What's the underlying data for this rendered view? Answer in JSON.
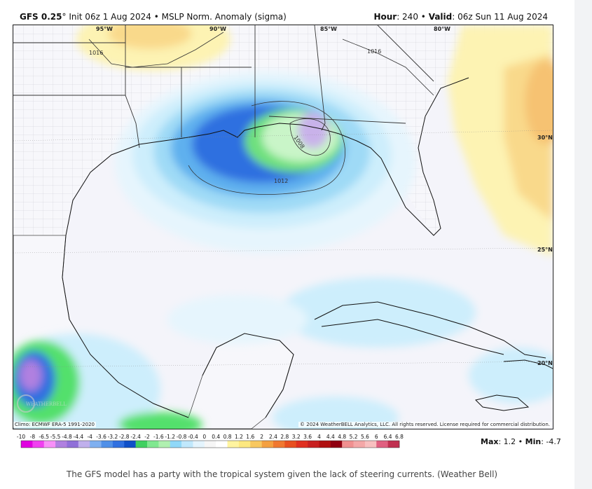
{
  "header": {
    "model": "GFS 0.25",
    "degree": "°",
    "init": "Init 06z 1 Aug 2024",
    "sep": "•",
    "field": "MSLP Norm. Anomaly (sigma)",
    "hour_label": "Hour",
    "hour_value": ": 240",
    "valid_label": "Valid",
    "valid_value": ": 06z Sun 11 Aug 2024"
  },
  "map": {
    "longitude_labels": [
      "95°W",
      "90°W",
      "85°W",
      "80°W"
    ],
    "latitude_labels": [
      "30°N",
      "25°N",
      "20°N"
    ],
    "isobar_labels": [
      "1016",
      "1016",
      "1012",
      "1008"
    ],
    "logo_text": "WEATHERBELL",
    "climo_note": "Climo: ECMWF ERA-5 1991-2020",
    "copyright": "© 2024 WeatherBELL Analytics, LLC. All rights reserved. License required for commercial distribution.",
    "colors": {
      "background": "#f4f4fa",
      "land": "#f7f7fb",
      "border": "#555555",
      "positive_light": "#fdf3b3",
      "positive_mid": "#f9d98b",
      "positive_strong": "#f6c272",
      "neg_light": "#cdeefc",
      "neg_mid": "#7ec8f2",
      "neg_strong": "#2f6fe0",
      "green_light": "#c9f5c8",
      "green_mid": "#52e06c",
      "purple": "#c9b2ea"
    }
  },
  "colorbar": {
    "labels": [
      "-10",
      "-8",
      "-6.5",
      "-5.5",
      "-4.8",
      "-4.4",
      "-4",
      "-3.6",
      "-3.2",
      "-2.8",
      "-2.4",
      "-2",
      "-1.6",
      "-1.2",
      "-0.8",
      "-0.4",
      "0",
      "0.4",
      "0.8",
      "1.2",
      "1.6",
      "2",
      "2.4",
      "2.8",
      "3.2",
      "3.6",
      "4",
      "4.4",
      "4.8",
      "5.2",
      "5.6",
      "6",
      "6.4",
      "6.8"
    ],
    "colors": [
      "#e000e0",
      "#f040f0",
      "#f890f8",
      "#b080e0",
      "#9070d8",
      "#c0b0ec",
      "#7fb0f0",
      "#5090e8",
      "#3070e0",
      "#1050c8",
      "#40d060",
      "#80e890",
      "#b0f0b0",
      "#90d8f8",
      "#c0e8fc",
      "#e4f4fd",
      "#f6f6f6",
      "#ffffff",
      "#fff4a0",
      "#fce880",
      "#f8c860",
      "#f4a040",
      "#f07830",
      "#e85020",
      "#e03020",
      "#c82020",
      "#b01010",
      "#900010",
      "#f09090",
      "#f4a8a8",
      "#f8c0c0",
      "#e06080",
      "#c03050"
    ]
  },
  "maxmin": {
    "max_label": "Max",
    "max_value": ": 1.2",
    "sep": "•",
    "min_label": "Min",
    "min_value": ": -4.7"
  },
  "caption": "The GFS model has a party with the tropical system given the lack of steering currents. (Weather Bell)"
}
